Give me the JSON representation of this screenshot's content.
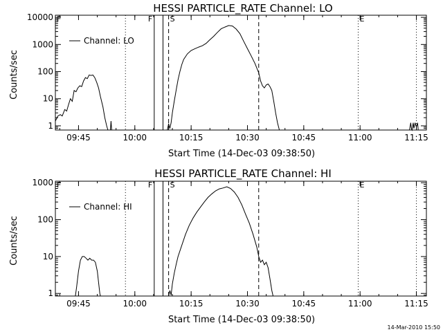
{
  "footer": {
    "date_stamp": "14-Mar-2010 15:50"
  },
  "chart_data": [
    {
      "type": "line",
      "title": "HESSI PARTICLE_RATE Channel: LO",
      "xlabel": "Start Time (14-Dec-03 09:38:50)",
      "ylabel": "Counts/sec",
      "yscale": "log",
      "ylim": [
        0.7,
        12000
      ],
      "xlim": [
        "09:38:50",
        "11:17:40"
      ],
      "x_ticks": [
        "09:45",
        "10:00",
        "10:15",
        "10:30",
        "10:45",
        "11:00",
        "11:15"
      ],
      "y_ticks": [
        "1",
        "10",
        "100",
        "1000",
        "10000"
      ],
      "legend": {
        "position": "upper-left",
        "label": "Channel: LO"
      },
      "markers": [
        {
          "label": "F",
          "style": "solid",
          "time": "10:05:10"
        },
        {
          "label": "",
          "style": "solid",
          "time": "10:07:30"
        },
        {
          "label": "S",
          "style": "dashed",
          "time": "10:09:00"
        },
        {
          "label": "",
          "style": "dashed",
          "time": "10:33:00"
        },
        {
          "label": "",
          "style": "dotted",
          "time": "09:57:30"
        },
        {
          "label": "E",
          "style": "dotted",
          "time": "10:59:30"
        },
        {
          "label": "",
          "style": "dotted",
          "time": "11:15:00"
        }
      ],
      "corner_marker": "F",
      "series": [
        {
          "name": "Channel: LO",
          "segments": [
            [
              [
                "09:38:50",
                1.5
              ],
              [
                "09:39:30",
                2.3
              ],
              [
                "09:40:10",
                2.6
              ],
              [
                "09:40:40",
                2.3
              ],
              [
                "09:41:20",
                4
              ],
              [
                "09:41:50",
                3.5
              ],
              [
                "09:42:20",
                6
              ],
              [
                "09:42:50",
                10
              ],
              [
                "09:43:20",
                8
              ],
              [
                "09:43:50",
                20
              ],
              [
                "09:44:20",
                18
              ],
              [
                "09:44:50",
                25
              ],
              [
                "09:45:20",
                30
              ],
              [
                "09:45:50",
                28
              ],
              [
                "09:46:20",
                45
              ],
              [
                "09:46:50",
                60
              ],
              [
                "09:47:20",
                55
              ],
              [
                "09:47:50",
                75
              ],
              [
                "09:48:20",
                72
              ],
              [
                "09:48:50",
                75
              ],
              [
                "09:49:20",
                60
              ],
              [
                "09:49:50",
                40
              ],
              [
                "09:50:20",
                25
              ],
              [
                "09:50:50",
                12
              ],
              [
                "09:51:30",
                5
              ],
              [
                "09:52:00",
                2
              ],
              [
                "09:52:30",
                1
              ],
              [
                "09:52:50",
                0.7
              ]
            ],
            [
              [
                "09:53:30",
                0.7
              ],
              [
                "09:53:40",
                1.5
              ],
              [
                "09:53:50",
                0.7
              ]
            ],
            [
              [
                "10:08:40",
                0.7
              ],
              [
                "10:09:00",
                1.2
              ],
              [
                "10:09:20",
                0.8
              ],
              [
                "10:09:40",
                1.3
              ],
              [
                "10:10:00",
                3
              ],
              [
                "10:10:30",
                8
              ],
              [
                "10:11:00",
                20
              ],
              [
                "10:11:30",
                50
              ],
              [
                "10:12:00",
                100
              ],
              [
                "10:12:30",
                180
              ],
              [
                "10:13:00",
                280
              ],
              [
                "10:14:00",
                450
              ],
              [
                "10:15:00",
                600
              ],
              [
                "10:16:00",
                700
              ],
              [
                "10:17:00",
                800
              ],
              [
                "10:18:00",
                900
              ],
              [
                "10:19:00",
                1100
              ],
              [
                "10:20:00",
                1500
              ],
              [
                "10:21:00",
                2000
              ],
              [
                "10:22:00",
                2800
              ],
              [
                "10:23:00",
                3800
              ],
              [
                "10:24:00",
                4400
              ],
              [
                "10:25:00",
                5000
              ],
              [
                "10:26:00",
                4800
              ],
              [
                "10:27:00",
                3700
              ],
              [
                "10:28:00",
                2500
              ],
              [
                "10:29:00",
                1300
              ],
              [
                "10:30:00",
                700
              ],
              [
                "10:31:00",
                380
              ],
              [
                "10:32:00",
                200
              ],
              [
                "10:33:00",
                90
              ],
              [
                "10:33:30",
                45
              ],
              [
                "10:34:00",
                30
              ],
              [
                "10:34:30",
                25
              ],
              [
                "10:35:00",
                32
              ],
              [
                "10:35:30",
                35
              ],
              [
                "10:36:00",
                28
              ],
              [
                "10:36:30",
                20
              ],
              [
                "10:37:00",
                8
              ],
              [
                "10:37:30",
                3
              ],
              [
                "10:38:00",
                1.3
              ],
              [
                "10:38:30",
                0.7
              ]
            ],
            [
              [
                "11:13:10",
                0.7
              ],
              [
                "11:13:30",
                1.3
              ],
              [
                "11:13:40",
                0.8
              ],
              [
                "11:13:50",
                0.7
              ],
              [
                "11:14:10",
                1.3
              ],
              [
                "11:14:20",
                0.8
              ],
              [
                "11:14:40",
                1.3
              ],
              [
                "11:15:00",
                0.9
              ],
              [
                "11:15:20",
                1.3
              ],
              [
                "11:15:30",
                0.7
              ]
            ]
          ]
        }
      ]
    },
    {
      "type": "line",
      "title": "HESSI PARTICLE_RATE Channel: HI",
      "xlabel": "Start Time (14-Dec-03 09:38:50)",
      "ylabel": "Counts/sec",
      "yscale": "log",
      "ylim": [
        0.85,
        1100
      ],
      "xlim": [
        "09:38:50",
        "11:17:40"
      ],
      "x_ticks": [
        "09:45",
        "10:00",
        "10:15",
        "10:30",
        "10:45",
        "11:00",
        "11:15"
      ],
      "y_ticks": [
        "1",
        "10",
        "100",
        "1000"
      ],
      "legend": {
        "position": "upper-left",
        "label": "Channel: HI"
      },
      "markers": [
        {
          "label": "F",
          "style": "solid",
          "time": "10:05:10"
        },
        {
          "label": "",
          "style": "solid",
          "time": "10:07:30"
        },
        {
          "label": "S",
          "style": "dashed",
          "time": "10:09:00"
        },
        {
          "label": "",
          "style": "dashed",
          "time": "10:33:00"
        },
        {
          "label": "",
          "style": "dotted",
          "time": "09:57:30"
        },
        {
          "label": "E",
          "style": "dotted",
          "time": "10:59:30"
        },
        {
          "label": "",
          "style": "dotted",
          "time": "11:15:00"
        }
      ],
      "corner_marker": "F",
      "series": [
        {
          "name": "Channel: HI",
          "segments": [
            [
              [
                "09:44:10",
                0.85
              ],
              [
                "09:44:30",
                1.5
              ],
              [
                "09:45:00",
                4
              ],
              [
                "09:45:30",
                8
              ],
              [
                "09:46:00",
                10
              ],
              [
                "09:46:30",
                10
              ],
              [
                "09:47:00",
                9
              ],
              [
                "09:47:30",
                8
              ],
              [
                "09:48:00",
                9
              ],
              [
                "09:48:30",
                8
              ],
              [
                "09:49:00",
                8
              ],
              [
                "09:49:30",
                7
              ],
              [
                "09:50:00",
                4
              ],
              [
                "09:50:20",
                2
              ],
              [
                "09:50:40",
                1
              ],
              [
                "09:50:50",
                0.85
              ]
            ],
            [
              [
                "10:09:00",
                0.85
              ],
              [
                "10:09:20",
                1.2
              ],
              [
                "10:09:40",
                0.9
              ],
              [
                "10:10:00",
                1.8
              ],
              [
                "10:10:30",
                3.5
              ],
              [
                "10:11:00",
                6
              ],
              [
                "10:11:30",
                10
              ],
              [
                "10:12:30",
                20
              ],
              [
                "10:13:30",
                40
              ],
              [
                "10:14:30",
                70
              ],
              [
                "10:15:30",
                110
              ],
              [
                "10:16:30",
                160
              ],
              [
                "10:17:30",
                220
              ],
              [
                "10:18:30",
                300
              ],
              [
                "10:19:30",
                400
              ],
              [
                "10:20:30",
                500
              ],
              [
                "10:21:30",
                600
              ],
              [
                "10:22:30",
                680
              ],
              [
                "10:23:30",
                720
              ],
              [
                "10:24:30",
                780
              ],
              [
                "10:25:30",
                700
              ],
              [
                "10:26:30",
                560
              ],
              [
                "10:27:30",
                400
              ],
              [
                "10:28:30",
                250
              ],
              [
                "10:29:30",
                140
              ],
              [
                "10:30:30",
                80
              ],
              [
                "10:31:30",
                40
              ],
              [
                "10:32:30",
                18
              ],
              [
                "10:33:00",
                10
              ],
              [
                "10:33:30",
                7
              ],
              [
                "10:34:00",
                8
              ],
              [
                "10:34:30",
                6
              ],
              [
                "10:35:00",
                7
              ],
              [
                "10:35:30",
                5
              ],
              [
                "10:36:00",
                2.5
              ],
              [
                "10:36:30",
                1.2
              ],
              [
                "10:36:50",
                0.85
              ]
            ]
          ]
        }
      ]
    }
  ]
}
